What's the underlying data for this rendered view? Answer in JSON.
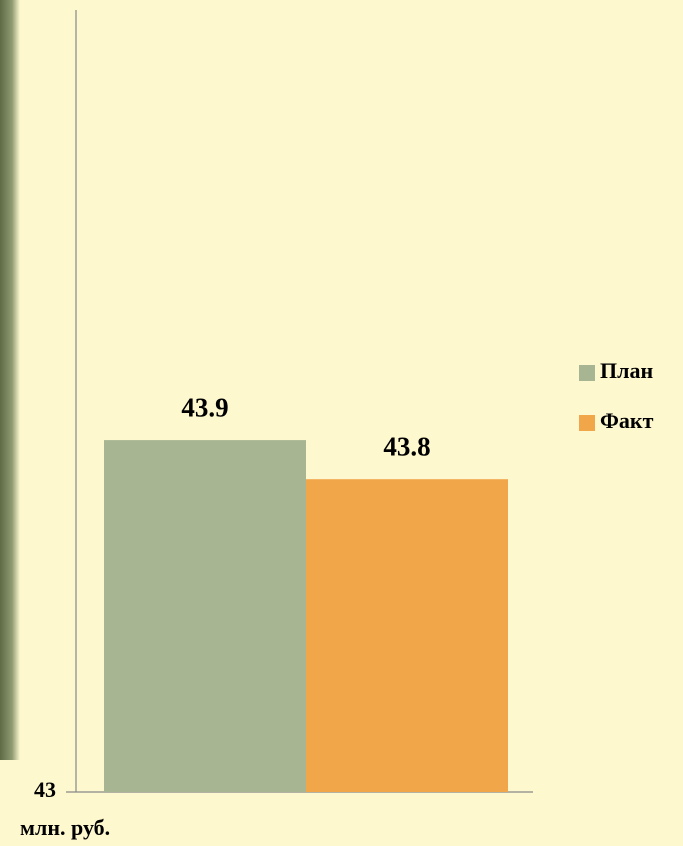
{
  "chart_data": {
    "type": "bar",
    "categories": [
      null
    ],
    "series": [
      {
        "name": "План",
        "color": "#a8b593",
        "values": [
          43.9
        ]
      },
      {
        "name": "Факт",
        "color": "#f2a64a",
        "values": [
          43.8
        ]
      }
    ],
    "ylim": [
      43,
      45
    ],
    "yticks": [
      43
    ],
    "y_label": "млн. руб.",
    "legend": "right"
  }
}
